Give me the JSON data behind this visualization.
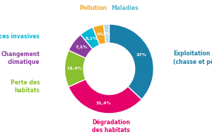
{
  "labels": [
    "Exploitation\n(chasse et pêche)",
    "Dégradation\ndes habitats",
    "Perte des\nhabitats",
    "Changement\nclimatique",
    "Espèces invasives",
    "Pollution",
    "Maladies"
  ],
  "values": [
    37,
    31.4,
    13.4,
    7.1,
    5.1,
    4,
    2
  ],
  "colors": [
    "#1a7fa8",
    "#e5006a",
    "#8abf2e",
    "#8b3d9e",
    "#00b9d4",
    "#f5a623",
    "#b8d9e8"
  ],
  "label_colors": [
    "#1a7fa8",
    "#e5006a",
    "#8abf2e",
    "#8b3d9e",
    "#00b9d4",
    "#f5a623",
    "#5bb8cc"
  ],
  "pct_labels": [
    "37%",
    "31,4%",
    "13,4%",
    "7,1%",
    "5,1%",
    "4%",
    "2%"
  ],
  "background_color": "#ffffff",
  "pct_colors": [
    "white",
    "#cc0055",
    "white",
    "white",
    "white",
    "white",
    "white"
  ]
}
